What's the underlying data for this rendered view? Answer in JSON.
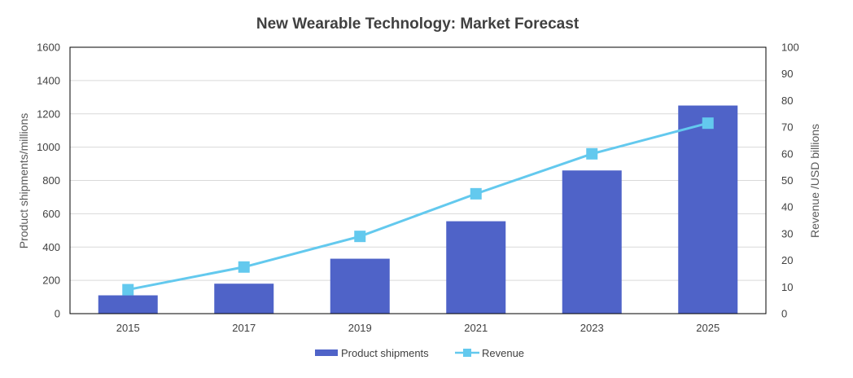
{
  "chart_data": {
    "type": "bar",
    "title": "New Wearable Technology: Market Forecast",
    "categories": [
      "2015",
      "2017",
      "2019",
      "2021",
      "2023",
      "2025"
    ],
    "ylabel": "Product shipments/millions",
    "y2label": "Revenue /USD billions",
    "ylim": [
      0,
      1600
    ],
    "y2lim": [
      0,
      100
    ],
    "yticks": [
      "0",
      "200",
      "400",
      "600",
      "800",
      "1000",
      "1200",
      "1400",
      "1600"
    ],
    "y2ticks": [
      "0",
      "10",
      "20",
      "30",
      "40",
      "50",
      "60",
      "70",
      "80",
      "90",
      "100"
    ],
    "grid": true,
    "legend_position": "bottom",
    "series": [
      {
        "name": "Product shipments",
        "type": "bar",
        "axis": "left",
        "color": "#4f63c8",
        "values": [
          110,
          180,
          330,
          555,
          860,
          1250
        ]
      },
      {
        "name": "Revenue",
        "type": "line",
        "axis": "right",
        "color": "#63c9ee",
        "values": [
          9,
          17.5,
          29,
          45,
          60,
          71.5
        ]
      }
    ]
  }
}
